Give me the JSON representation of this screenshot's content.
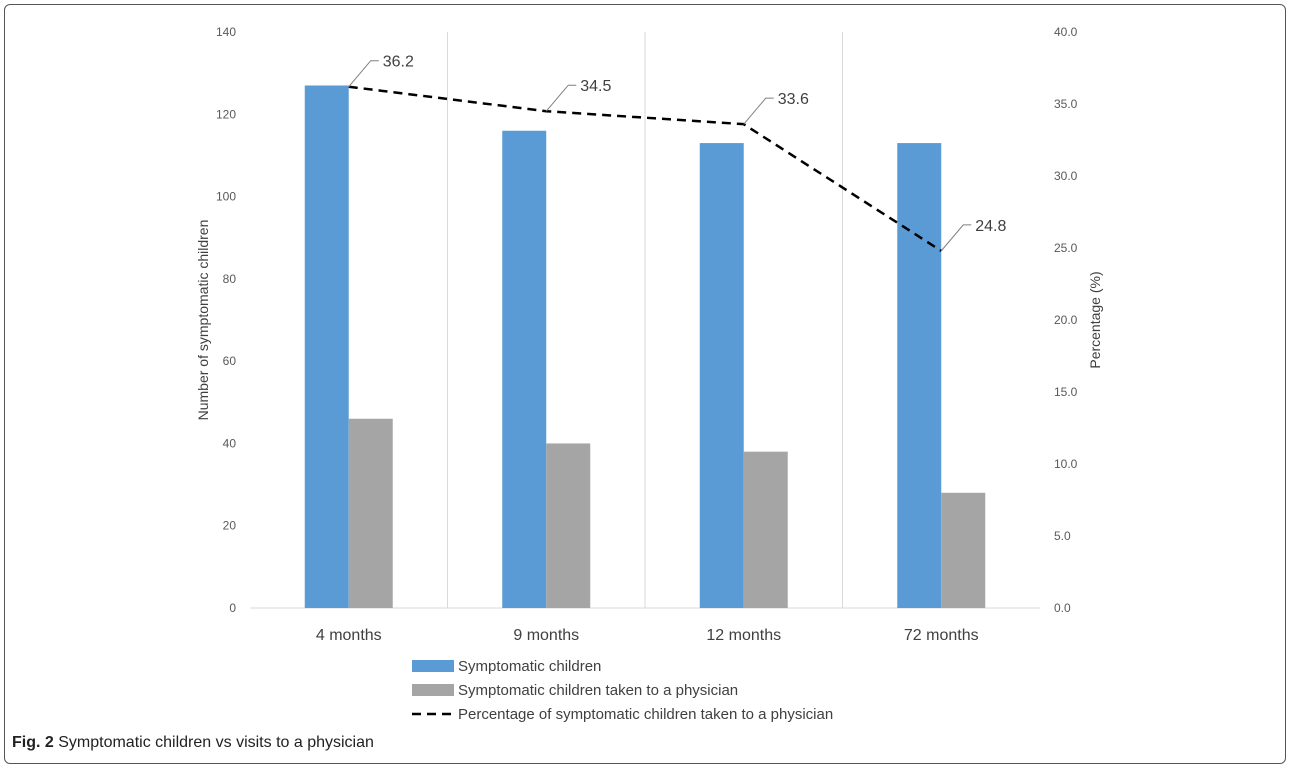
{
  "caption": {
    "label": "Fig. 2",
    "text": "Symptomatic children vs visits to a physician"
  },
  "colors": {
    "symptomatic": "#5b9bd5",
    "physician": "#a5a5a5",
    "line": "#000000",
    "grid": "#d9d9d9",
    "text": "#595959"
  },
  "chart_data": {
    "type": "bar",
    "categories": [
      "4 months",
      "9 months",
      "12 months",
      "72 months"
    ],
    "series": [
      {
        "name": "Symptomatic children",
        "type": "bar",
        "axis": "left",
        "values": [
          127,
          116,
          113,
          113
        ]
      },
      {
        "name": "Symptomatic children taken to a physician",
        "type": "bar",
        "axis": "left",
        "values": [
          46,
          40,
          38,
          28
        ]
      },
      {
        "name": "Percentage of symptomatic children taken to a physician",
        "type": "line",
        "axis": "right",
        "style": "dashed",
        "values": [
          36.2,
          34.5,
          33.6,
          24.8
        ],
        "labels": [
          "36.2",
          "34.5",
          "33.6",
          "24.8"
        ]
      }
    ],
    "ylabel": "Number of symptomatic children",
    "y2label": "Percentage (%)",
    "ylim": [
      0,
      140
    ],
    "yticks": [
      0,
      20,
      40,
      60,
      80,
      100,
      120,
      140
    ],
    "ytick_labels": [
      "0",
      "20",
      "40",
      "60",
      "80",
      "100",
      "120",
      "140"
    ],
    "y2lim": [
      0,
      40
    ],
    "y2ticks": [
      0,
      5,
      10,
      15,
      20,
      25,
      30,
      35,
      40
    ],
    "y2tick_labels": [
      "0.0",
      "5.0",
      "10.0",
      "15.0",
      "20.0",
      "25.0",
      "30.0",
      "35.0",
      "40.0"
    ],
    "grid": "vertical-between-categories",
    "legend": "bottom"
  }
}
